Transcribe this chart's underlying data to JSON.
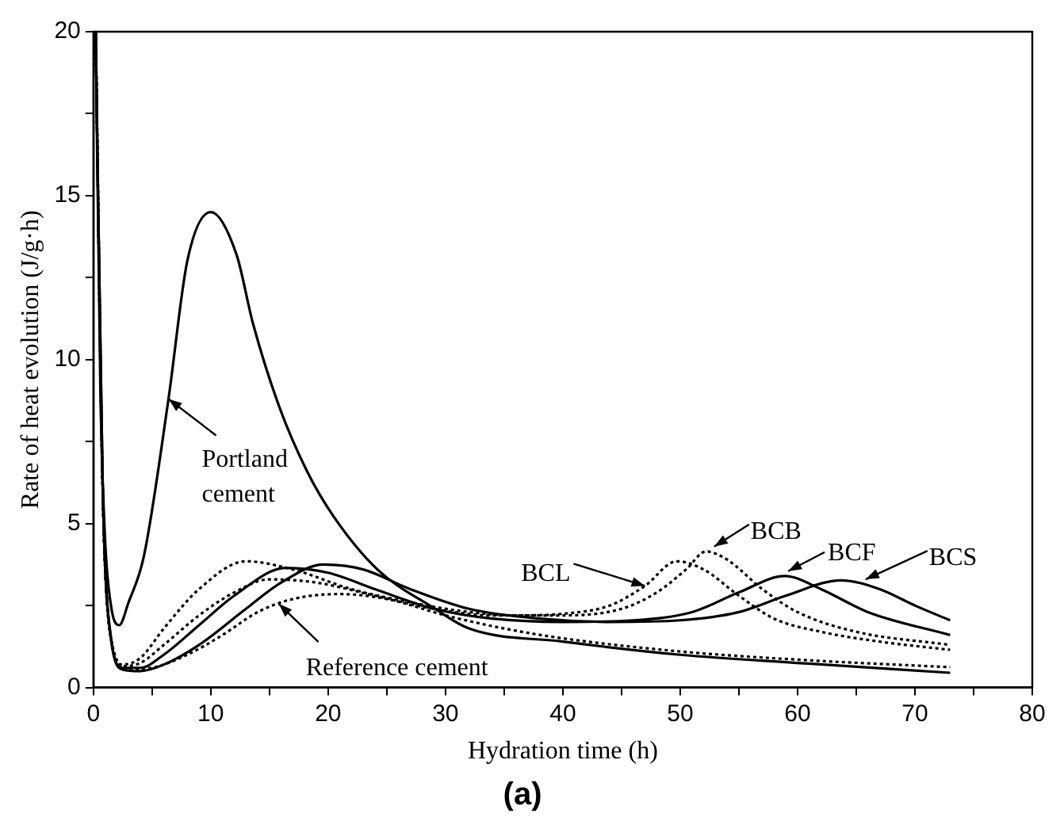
{
  "chart_data": {
    "type": "line",
    "title": "(a)",
    "xlabel": "Hydration time (h)",
    "ylabel": "Rate of heat evolution (J/g·h)",
    "xlim": [
      0,
      80
    ],
    "ylim": [
      0,
      20
    ],
    "xticks": [
      0,
      {
        "value": 5,
        "label": null
      },
      10,
      {
        "value": 15,
        "label": null
      },
      20,
      {
        "value": 25,
        "label": null
      },
      30,
      {
        "value": 35,
        "label": null
      },
      40,
      {
        "value": 45,
        "label": null
      },
      50,
      {
        "value": 55,
        "label": null
      },
      60,
      {
        "value": 65,
        "label": null
      },
      70,
      {
        "value": 75,
        "label": null
      },
      80
    ],
    "yticks": [
      0,
      {
        "value": 2.5,
        "label": null
      },
      5,
      {
        "value": 7.5,
        "label": null
      },
      10,
      {
        "value": 12.5,
        "label": null
      },
      15,
      {
        "value": 17.5,
        "label": null
      },
      20
    ],
    "grid": false,
    "legend": false,
    "marker": "none",
    "series": [
      {
        "color": "#000000",
        "line_style": "solid",
        "x": [
          0.2,
          0.6,
          1.0,
          1.5,
          2.2,
          3.0,
          4.3,
          6.4,
          8.0,
          10.0,
          12.2,
          13.6,
          15.8,
          18.2,
          20.5,
          24.2,
          28.9,
          32,
          40,
          50,
          60,
          73
        ],
        "values": [
          20,
          9,
          4.5,
          2.5,
          1.9,
          2.6,
          4.0,
          8.8,
          13.0,
          14.5,
          13.2,
          11.1,
          8.6,
          6.6,
          5.2,
          3.6,
          2.45,
          1.8,
          1.4,
          1.0,
          0.75,
          0.45
        ]
      },
      {
        "color": "#000000",
        "line_style": "dotted",
        "x": [
          0.2,
          0.8,
          1.5,
          3,
          5,
          8,
          11,
          14,
          17,
          21,
          25,
          30,
          35,
          40,
          50,
          60,
          73
        ],
        "values": [
          20,
          6,
          1.5,
          0.55,
          0.6,
          1.0,
          1.6,
          2.3,
          2.7,
          2.85,
          2.7,
          2.2,
          1.8,
          1.5,
          1.1,
          0.85,
          0.62
        ]
      },
      {
        "color": "#000000",
        "line_style": "dotted",
        "x": [
          0.2,
          0.8,
          1.5,
          2.5,
          4,
          6,
          9,
          13,
          17,
          22,
          27,
          31,
          36,
          40,
          44,
          47,
          49.7,
          52,
          55,
          58,
          62,
          67,
          73
        ],
        "values": [
          20,
          6,
          1.5,
          0.7,
          0.9,
          1.8,
          3.0,
          3.85,
          3.6,
          3.0,
          2.6,
          2.35,
          2.2,
          2.25,
          2.5,
          3.1,
          3.85,
          3.6,
          2.8,
          2.1,
          1.7,
          1.4,
          1.15
        ]
      },
      {
        "color": "#000000",
        "line_style": "dotted",
        "x": [
          0.2,
          0.8,
          1.5,
          2.5,
          4,
          6,
          9,
          12,
          15,
          19,
          24,
          29,
          34,
          40,
          45,
          48,
          50.5,
          52.2,
          54,
          57,
          60,
          65,
          73
        ],
        "values": [
          20,
          6,
          1.5,
          0.65,
          0.75,
          1.3,
          2.2,
          2.9,
          3.3,
          3.2,
          2.8,
          2.4,
          2.2,
          2.2,
          2.4,
          2.9,
          3.6,
          4.15,
          3.9,
          3.0,
          2.3,
          1.7,
          1.3
        ]
      },
      {
        "color": "#000000",
        "line_style": "solid",
        "x": [
          0.2,
          0.8,
          1.5,
          2.5,
          4,
          6,
          9,
          12,
          16.4,
          20,
          24,
          29,
          34,
          40,
          46,
          51,
          55,
          58.9,
          62,
          66,
          73
        ],
        "values": [
          20,
          6,
          1.5,
          0.6,
          0.6,
          1.0,
          1.9,
          2.8,
          3.65,
          3.5,
          3.0,
          2.4,
          2.1,
          2.0,
          2.05,
          2.3,
          2.9,
          3.4,
          3.0,
          2.3,
          1.6
        ]
      },
      {
        "color": "#000000",
        "line_style": "solid",
        "x": [
          0.2,
          0.8,
          1.5,
          2.5,
          4,
          6,
          9,
          13,
          16,
          19.6,
          23,
          27,
          32,
          38,
          44,
          50,
          55,
          59,
          63.7,
          67,
          70,
          73
        ],
        "values": [
          20,
          6,
          1.5,
          0.55,
          0.5,
          0.7,
          1.3,
          2.4,
          3.2,
          3.75,
          3.6,
          3.0,
          2.4,
          2.1,
          2.0,
          2.05,
          2.3,
          2.8,
          3.27,
          3.0,
          2.5,
          2.05
        ]
      }
    ],
    "annotations": [
      {
        "text": "Portland cement",
        "x": 6.4,
        "y": 8.8
      },
      {
        "text": "Reference cement",
        "x": 15.8,
        "y": 2.55
      },
      {
        "text": "BCL",
        "x": 47,
        "y": 3.1
      },
      {
        "text": "BCB",
        "x": 52.9,
        "y": 4.3
      },
      {
        "text": "BCF",
        "x": 59.2,
        "y": 3.55
      },
      {
        "text": "BCS",
        "x": 65.8,
        "y": 3.3
      }
    ]
  }
}
